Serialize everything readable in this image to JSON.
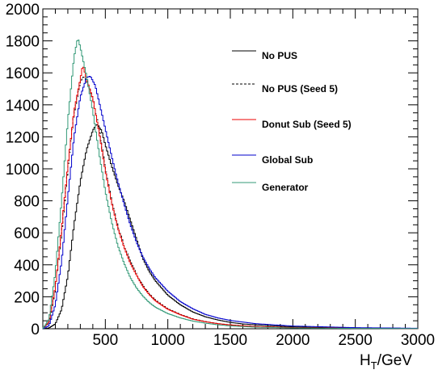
{
  "chart_data": {
    "type": "line",
    "style": "step-histogram",
    "title": "",
    "xlabel_main": "H",
    "xlabel_sub": "T",
    "xlabel_unit": "/GeV",
    "ylabel": "",
    "xlim": [
      0,
      3000
    ],
    "ylim": [
      0,
      2000
    ],
    "x_ticks": [
      500,
      1000,
      1500,
      2000,
      2500,
      3000
    ],
    "y_ticks": [
      0,
      200,
      400,
      600,
      800,
      1000,
      1200,
      1400,
      1600,
      1800,
      2000
    ],
    "grid": false,
    "legend_position": "top-right",
    "series": [
      {
        "name": "No PUS",
        "color": "#000000",
        "dashed": false,
        "points": [
          [
            0,
            0
          ],
          [
            50,
            5
          ],
          [
            100,
            30
          ],
          [
            150,
            120
          ],
          [
            200,
            330
          ],
          [
            250,
            650
          ],
          [
            300,
            920
          ],
          [
            350,
            1120
          ],
          [
            400,
            1240
          ],
          [
            430,
            1280
          ],
          [
            470,
            1240
          ],
          [
            500,
            1150
          ],
          [
            550,
            1020
          ],
          [
            600,
            900
          ],
          [
            650,
            800
          ],
          [
            700,
            680
          ],
          [
            750,
            560
          ],
          [
            800,
            440
          ],
          [
            850,
            360
          ],
          [
            900,
            300
          ],
          [
            1000,
            210
          ],
          [
            1100,
            150
          ],
          [
            1200,
            105
          ],
          [
            1300,
            75
          ],
          [
            1400,
            55
          ],
          [
            1500,
            40
          ],
          [
            1600,
            30
          ],
          [
            1800,
            20
          ],
          [
            2000,
            12
          ],
          [
            2200,
            8
          ],
          [
            2500,
            5
          ],
          [
            3000,
            2
          ]
        ]
      },
      {
        "name": "No PUS (Seed 5)",
        "color": "#000000",
        "dashed": true,
        "points": [
          [
            0,
            0
          ],
          [
            50,
            40
          ],
          [
            100,
            250
          ],
          [
            150,
            600
          ],
          [
            200,
            1000
          ],
          [
            250,
            1350
          ],
          [
            300,
            1540
          ],
          [
            330,
            1580
          ],
          [
            350,
            1550
          ],
          [
            400,
            1440
          ],
          [
            450,
            1250
          ],
          [
            500,
            1000
          ],
          [
            550,
            800
          ],
          [
            600,
            640
          ],
          [
            650,
            520
          ],
          [
            700,
            420
          ],
          [
            750,
            340
          ],
          [
            800,
            270
          ],
          [
            850,
            220
          ],
          [
            900,
            180
          ],
          [
            1000,
            125
          ],
          [
            1100,
            90
          ],
          [
            1200,
            62
          ],
          [
            1300,
            45
          ],
          [
            1400,
            32
          ],
          [
            1500,
            24
          ],
          [
            1700,
            14
          ],
          [
            2000,
            7
          ],
          [
            2500,
            3
          ],
          [
            3000,
            1
          ]
        ]
      },
      {
        "name": "Donut Sub (Seed 5)",
        "color": "#ee0000",
        "dashed": false,
        "points": [
          [
            0,
            0
          ],
          [
            50,
            45
          ],
          [
            100,
            260
          ],
          [
            150,
            620
          ],
          [
            200,
            1020
          ],
          [
            250,
            1360
          ],
          [
            300,
            1560
          ],
          [
            320,
            1650
          ],
          [
            350,
            1560
          ],
          [
            400,
            1440
          ],
          [
            450,
            1230
          ],
          [
            500,
            990
          ],
          [
            550,
            790
          ],
          [
            600,
            630
          ],
          [
            650,
            510
          ],
          [
            700,
            410
          ],
          [
            750,
            335
          ],
          [
            800,
            265
          ],
          [
            850,
            215
          ],
          [
            900,
            175
          ],
          [
            1000,
            122
          ],
          [
            1100,
            88
          ],
          [
            1200,
            60
          ],
          [
            1300,
            44
          ],
          [
            1400,
            32
          ],
          [
            1500,
            24
          ],
          [
            1700,
            14
          ],
          [
            2000,
            7
          ],
          [
            2500,
            3
          ],
          [
            3000,
            1
          ]
        ]
      },
      {
        "name": "Global Sub",
        "color": "#0000cc",
        "dashed": false,
        "points": [
          [
            0,
            0
          ],
          [
            50,
            20
          ],
          [
            100,
            150
          ],
          [
            150,
            420
          ],
          [
            200,
            820
          ],
          [
            250,
            1200
          ],
          [
            300,
            1450
          ],
          [
            350,
            1570
          ],
          [
            380,
            1580
          ],
          [
            420,
            1520
          ],
          [
            450,
            1420
          ],
          [
            500,
            1250
          ],
          [
            550,
            1080
          ],
          [
            600,
            920
          ],
          [
            650,
            780
          ],
          [
            700,
            650
          ],
          [
            750,
            540
          ],
          [
            800,
            450
          ],
          [
            850,
            380
          ],
          [
            900,
            320
          ],
          [
            1000,
            235
          ],
          [
            1100,
            170
          ],
          [
            1200,
            125
          ],
          [
            1300,
            90
          ],
          [
            1400,
            68
          ],
          [
            1500,
            52
          ],
          [
            1700,
            32
          ],
          [
            2000,
            17
          ],
          [
            2500,
            7
          ],
          [
            3000,
            3
          ]
        ]
      },
      {
        "name": "Generator",
        "color": "#339977",
        "dashed": false,
        "points": [
          [
            0,
            0
          ],
          [
            50,
            60
          ],
          [
            100,
            350
          ],
          [
            150,
            800
          ],
          [
            200,
            1300
          ],
          [
            250,
            1700
          ],
          [
            280,
            1820
          ],
          [
            300,
            1760
          ],
          [
            350,
            1580
          ],
          [
            400,
            1360
          ],
          [
            450,
            1100
          ],
          [
            500,
            860
          ],
          [
            550,
            670
          ],
          [
            600,
            520
          ],
          [
            650,
            410
          ],
          [
            700,
            320
          ],
          [
            750,
            255
          ],
          [
            800,
            205
          ],
          [
            850,
            165
          ],
          [
            900,
            135
          ],
          [
            1000,
            95
          ],
          [
            1100,
            68
          ],
          [
            1200,
            48
          ],
          [
            1300,
            35
          ],
          [
            1400,
            25
          ],
          [
            1500,
            18
          ],
          [
            1700,
            10
          ],
          [
            2000,
            5
          ],
          [
            2500,
            2
          ],
          [
            3000,
            1
          ]
        ]
      }
    ]
  }
}
